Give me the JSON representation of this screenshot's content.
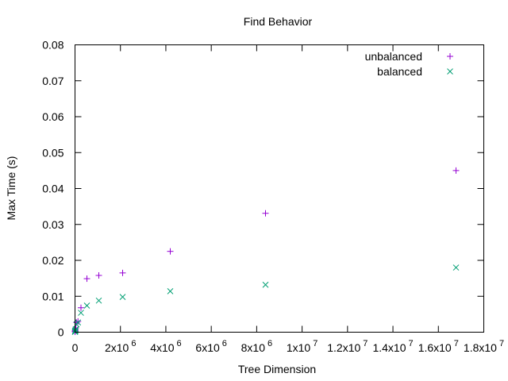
{
  "chart_data": {
    "type": "scatter",
    "title": "Find Behavior",
    "xlabel": "Tree Dimension",
    "ylabel": "Max Time (s)",
    "xlim": [
      0,
      18000000
    ],
    "ylim": [
      0,
      0.08
    ],
    "grid": false,
    "legend_position": "top-right",
    "x_ticks": [
      {
        "value": 0,
        "base": "0",
        "exp": ""
      },
      {
        "value": 2000000,
        "base": "2x10",
        "exp": "6"
      },
      {
        "value": 4000000,
        "base": "4x10",
        "exp": "6"
      },
      {
        "value": 6000000,
        "base": "6x10",
        "exp": "6"
      },
      {
        "value": 8000000,
        "base": "8x10",
        "exp": "6"
      },
      {
        "value": 10000000,
        "base": "1x10",
        "exp": "7"
      },
      {
        "value": 12000000,
        "base": "1.2x10",
        "exp": "7"
      },
      {
        "value": 14000000,
        "base": "1.4x10",
        "exp": "7"
      },
      {
        "value": 16000000,
        "base": "1.6x10",
        "exp": "7"
      },
      {
        "value": 18000000,
        "base": "1.8x10",
        "exp": "7"
      }
    ],
    "y_ticks": [
      {
        "value": 0,
        "label": "0"
      },
      {
        "value": 0.01,
        "label": "0.01"
      },
      {
        "value": 0.02,
        "label": "0.02"
      },
      {
        "value": 0.03,
        "label": "0.03"
      },
      {
        "value": 0.04,
        "label": "0.04"
      },
      {
        "value": 0.05,
        "label": "0.05"
      },
      {
        "value": 0.06,
        "label": "0.06"
      },
      {
        "value": 0.07,
        "label": "0.07"
      },
      {
        "value": 0.08,
        "label": "0.08"
      }
    ],
    "series": [
      {
        "name": "unbalanced",
        "marker": "plus",
        "color": "#9400d3",
        "x": [
          1024,
          2048,
          4096,
          8192,
          16384,
          32768,
          65536,
          131072,
          262144,
          524288,
          1048576,
          2097152,
          4194304,
          8388608,
          16777216
        ],
        "y": [
          0.0001,
          0.0002,
          0.0003,
          0.0005,
          0.0007,
          0.0012,
          0.0027,
          0.003,
          0.0068,
          0.0149,
          0.0158,
          0.0165,
          0.0225,
          0.0331,
          0.045
        ]
      },
      {
        "name": "balanced",
        "marker": "cross",
        "color": "#009e73",
        "x": [
          1024,
          2048,
          4096,
          8192,
          16384,
          32768,
          65536,
          131072,
          262144,
          524288,
          1048576,
          2097152,
          4194304,
          8388608,
          16777216
        ],
        "y": [
          0.0001,
          0.0001,
          0.0002,
          0.0003,
          0.0005,
          0.0008,
          0.0022,
          0.0027,
          0.0054,
          0.0074,
          0.0088,
          0.0098,
          0.0114,
          0.0132,
          0.018
        ]
      }
    ]
  }
}
